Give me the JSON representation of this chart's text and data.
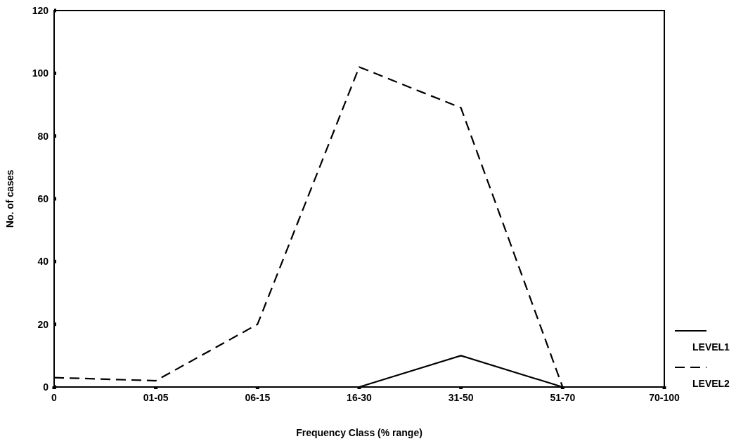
{
  "chart_data": {
    "type": "line",
    "xlabel": "Frequency Class (% range)",
    "ylabel": "No. of cases",
    "categories": [
      "0",
      "01-05",
      "06-15",
      "16-30",
      "31-50",
      "51-70",
      "70-100"
    ],
    "series": [
      {
        "name": "LEVEL1",
        "color": "#000000",
        "line_style": "solid",
        "values": [
          null,
          null,
          0,
          0,
          10,
          0,
          null
        ]
      },
      {
        "name": "LEVEL2",
        "color": "#000000",
        "line_style": "dashed",
        "values": [
          3,
          2,
          20,
          102,
          89,
          0,
          null
        ]
      }
    ],
    "ylim": [
      0,
      120
    ],
    "yticks": [
      0,
      20,
      40,
      60,
      80,
      100,
      120
    ],
    "legend": "right",
    "grid": false
  }
}
